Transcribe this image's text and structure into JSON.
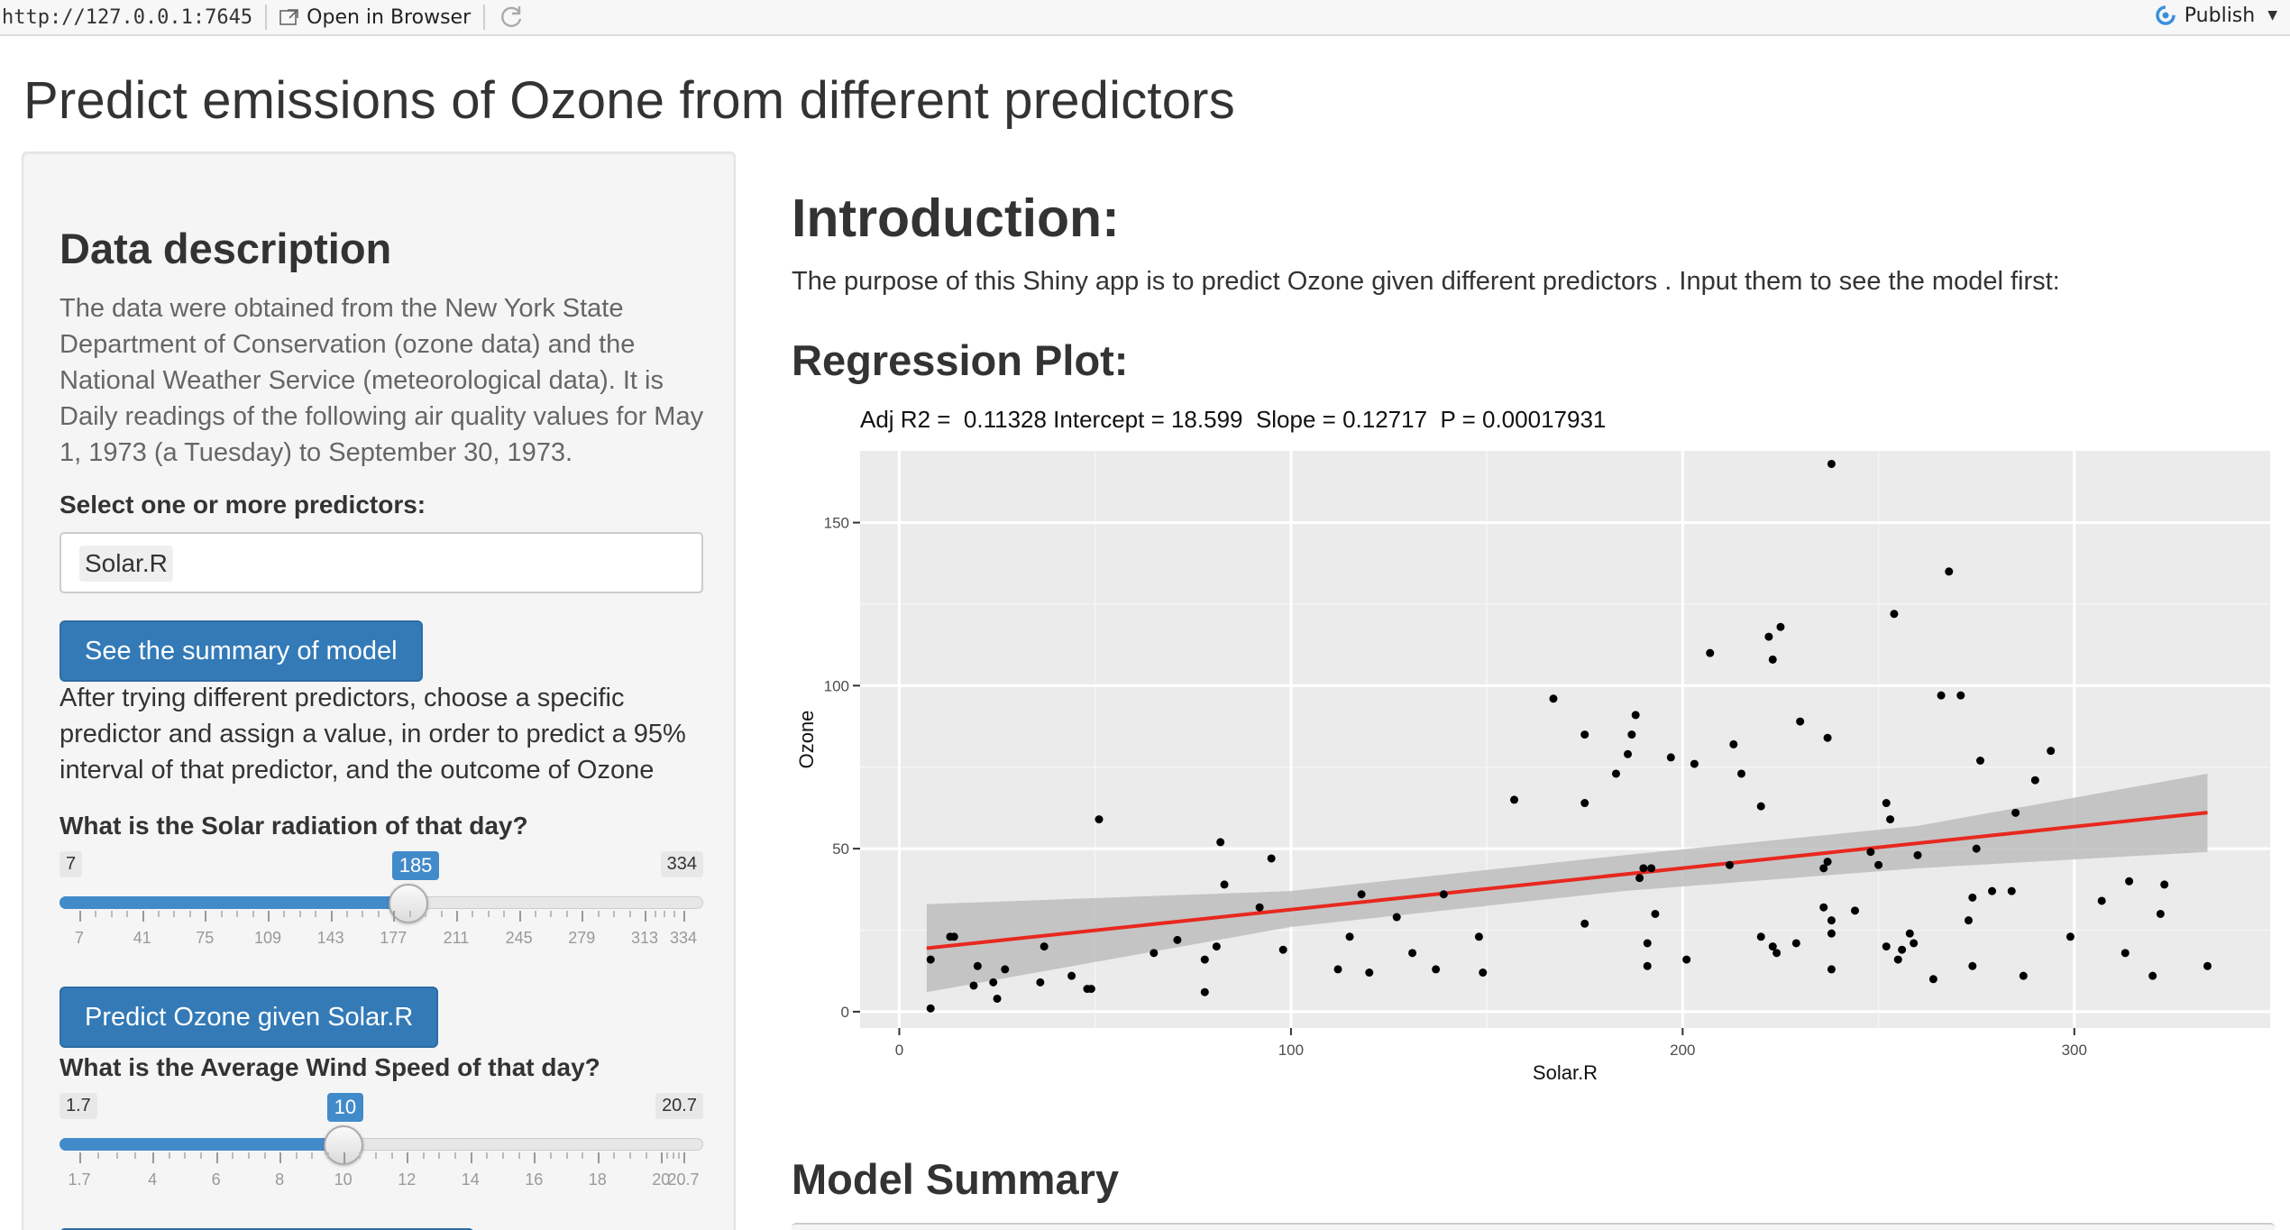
{
  "topbar": {
    "url": "http://127.0.0.1:7645",
    "open_label": "Open in Browser",
    "publish_label": "Publish"
  },
  "page": {
    "title": "Predict emissions of Ozone from different predictors"
  },
  "sidebar": {
    "heading": "Data description",
    "description": "The data were obtained from the New York State Department of Conservation (ozone data) and the National Weather Service (meteorological data). It is Daily readings of the following air quality values for May 1, 1973 (a Tuesday) to September 30, 1973.",
    "select_label": "Select one or more predictors:",
    "selected_predictor": "Solar.R",
    "summary_button": "See the summary of model",
    "help_text": "After trying different predictors, choose a specific predictor and assign a value, in order to predict a 95% interval of that predictor, and the outcome of Ozone",
    "solar_slider": {
      "label": "What is the Solar radiation of that day?",
      "min": 7,
      "max": 334,
      "value": 185,
      "min_label": "7",
      "max_label": "334",
      "value_label": "185",
      "ticks": [
        "7",
        "41",
        "75",
        "109",
        "143",
        "177",
        "211",
        "245",
        "279",
        "313",
        "334"
      ]
    },
    "predict_button": "Predict Ozone given Solar.R",
    "wind_slider": {
      "label": "What is the Average Wind Speed of that day?",
      "min": 1.7,
      "max": 20.7,
      "value": 10,
      "min_label": "1.7",
      "max_label": "20.7",
      "value_label": "10",
      "ticks": [
        "1.7",
        "4",
        "6",
        "8",
        "10",
        "12",
        "14",
        "16",
        "18",
        "20",
        "20.7"
      ]
    }
  },
  "main": {
    "intro_heading": "Introduction:",
    "intro_text": "The purpose of this Shiny app is to predict Ozone given different predictors . Input them to see the model first:",
    "regression_heading": "Regression Plot:",
    "stats_line": "Adj R2 =  0.11328 Intercept = 18.599  Slope = 0.12717  P = 0.00017931",
    "summary_heading": "Model Summary"
  },
  "chart_data": {
    "type": "scatter",
    "title": "Adj R2 =  0.11328 Intercept = 18.599  Slope = 0.12717  P = 0.00017931",
    "xlabel": "Solar.R",
    "ylabel": "Ozone",
    "xlim": [
      -10,
      350
    ],
    "ylim": [
      -5,
      172
    ],
    "x_ticks": [
      0,
      100,
      200,
      300
    ],
    "y_ticks": [
      0,
      50,
      100,
      150
    ],
    "grid": true,
    "colors": {
      "panel": "#ebebeb",
      "grid": "#ffffff",
      "point": "#000000",
      "line": "#e8281e",
      "band": "#bdbdbd"
    },
    "regression": {
      "intercept": 18.599,
      "slope": 0.12717,
      "x_range": [
        7,
        334
      ]
    },
    "confidence_band": [
      {
        "x": 7,
        "lower": 6,
        "upper": 33
      },
      {
        "x": 100,
        "lower": 26,
        "upper": 37
      },
      {
        "x": 185,
        "lower": 37,
        "upper": 48
      },
      {
        "x": 260,
        "lower": 44,
        "upper": 57
      },
      {
        "x": 334,
        "lower": 49,
        "upper": 73
      }
    ],
    "points": [
      {
        "x": 8,
        "y": 16
      },
      {
        "x": 8,
        "y": 1
      },
      {
        "x": 13,
        "y": 23
      },
      {
        "x": 14,
        "y": 23
      },
      {
        "x": 19,
        "y": 8
      },
      {
        "x": 20,
        "y": 14
      },
      {
        "x": 24,
        "y": 9
      },
      {
        "x": 25,
        "y": 4
      },
      {
        "x": 27,
        "y": 13
      },
      {
        "x": 36,
        "y": 9
      },
      {
        "x": 37,
        "y": 20
      },
      {
        "x": 44,
        "y": 11
      },
      {
        "x": 48,
        "y": 7
      },
      {
        "x": 49,
        "y": 7
      },
      {
        "x": 51,
        "y": 59
      },
      {
        "x": 65,
        "y": 18
      },
      {
        "x": 71,
        "y": 22
      },
      {
        "x": 78,
        "y": 6
      },
      {
        "x": 78,
        "y": 16
      },
      {
        "x": 81,
        "y": 20
      },
      {
        "x": 82,
        "y": 52
      },
      {
        "x": 83,
        "y": 39
      },
      {
        "x": 92,
        "y": 32
      },
      {
        "x": 95,
        "y": 47
      },
      {
        "x": 98,
        "y": 19
      },
      {
        "x": 112,
        "y": 13
      },
      {
        "x": 115,
        "y": 23
      },
      {
        "x": 118,
        "y": 36
      },
      {
        "x": 120,
        "y": 12
      },
      {
        "x": 127,
        "y": 29
      },
      {
        "x": 131,
        "y": 18
      },
      {
        "x": 137,
        "y": 13
      },
      {
        "x": 139,
        "y": 36
      },
      {
        "x": 148,
        "y": 23
      },
      {
        "x": 149,
        "y": 12
      },
      {
        "x": 157,
        "y": 65
      },
      {
        "x": 175,
        "y": 27
      },
      {
        "x": 175,
        "y": 85
      },
      {
        "x": 175,
        "y": 64
      },
      {
        "x": 167,
        "y": 96
      },
      {
        "x": 183,
        "y": 73
      },
      {
        "x": 186,
        "y": 79
      },
      {
        "x": 187,
        "y": 85
      },
      {
        "x": 188,
        "y": 91
      },
      {
        "x": 189,
        "y": 41
      },
      {
        "x": 190,
        "y": 44
      },
      {
        "x": 191,
        "y": 21
      },
      {
        "x": 191,
        "y": 14
      },
      {
        "x": 192,
        "y": 44
      },
      {
        "x": 193,
        "y": 30
      },
      {
        "x": 197,
        "y": 78
      },
      {
        "x": 201,
        "y": 16
      },
      {
        "x": 203,
        "y": 76
      },
      {
        "x": 207,
        "y": 110
      },
      {
        "x": 212,
        "y": 45
      },
      {
        "x": 213,
        "y": 82
      },
      {
        "x": 215,
        "y": 73
      },
      {
        "x": 220,
        "y": 63
      },
      {
        "x": 220,
        "y": 23
      },
      {
        "x": 222,
        "y": 115
      },
      {
        "x": 223,
        "y": 20
      },
      {
        "x": 223,
        "y": 108
      },
      {
        "x": 224,
        "y": 18
      },
      {
        "x": 225,
        "y": 118
      },
      {
        "x": 229,
        "y": 21
      },
      {
        "x": 230,
        "y": 89
      },
      {
        "x": 236,
        "y": 32
      },
      {
        "x": 236,
        "y": 44
      },
      {
        "x": 237,
        "y": 84
      },
      {
        "x": 237,
        "y": 46
      },
      {
        "x": 238,
        "y": 28
      },
      {
        "x": 238,
        "y": 13
      },
      {
        "x": 238,
        "y": 24
      },
      {
        "x": 238,
        "y": 168
      },
      {
        "x": 244,
        "y": 31
      },
      {
        "x": 248,
        "y": 49
      },
      {
        "x": 250,
        "y": 45
      },
      {
        "x": 252,
        "y": 20
      },
      {
        "x": 252,
        "y": 64
      },
      {
        "x": 253,
        "y": 59
      },
      {
        "x": 254,
        "y": 122
      },
      {
        "x": 255,
        "y": 16
      },
      {
        "x": 256,
        "y": 19
      },
      {
        "x": 258,
        "y": 24
      },
      {
        "x": 259,
        "y": 21
      },
      {
        "x": 260,
        "y": 48
      },
      {
        "x": 264,
        "y": 10
      },
      {
        "x": 266,
        "y": 97
      },
      {
        "x": 268,
        "y": 135
      },
      {
        "x": 271,
        "y": 97
      },
      {
        "x": 273,
        "y": 28
      },
      {
        "x": 274,
        "y": 14
      },
      {
        "x": 274,
        "y": 35
      },
      {
        "x": 275,
        "y": 50
      },
      {
        "x": 276,
        "y": 77
      },
      {
        "x": 279,
        "y": 37
      },
      {
        "x": 284,
        "y": 37
      },
      {
        "x": 285,
        "y": 61
      },
      {
        "x": 287,
        "y": 11
      },
      {
        "x": 290,
        "y": 71
      },
      {
        "x": 294,
        "y": 80
      },
      {
        "x": 299,
        "y": 23
      },
      {
        "x": 307,
        "y": 34
      },
      {
        "x": 313,
        "y": 18
      },
      {
        "x": 314,
        "y": 40
      },
      {
        "x": 320,
        "y": 11
      },
      {
        "x": 322,
        "y": 30
      },
      {
        "x": 323,
        "y": 39
      },
      {
        "x": 334,
        "y": 14
      }
    ]
  }
}
